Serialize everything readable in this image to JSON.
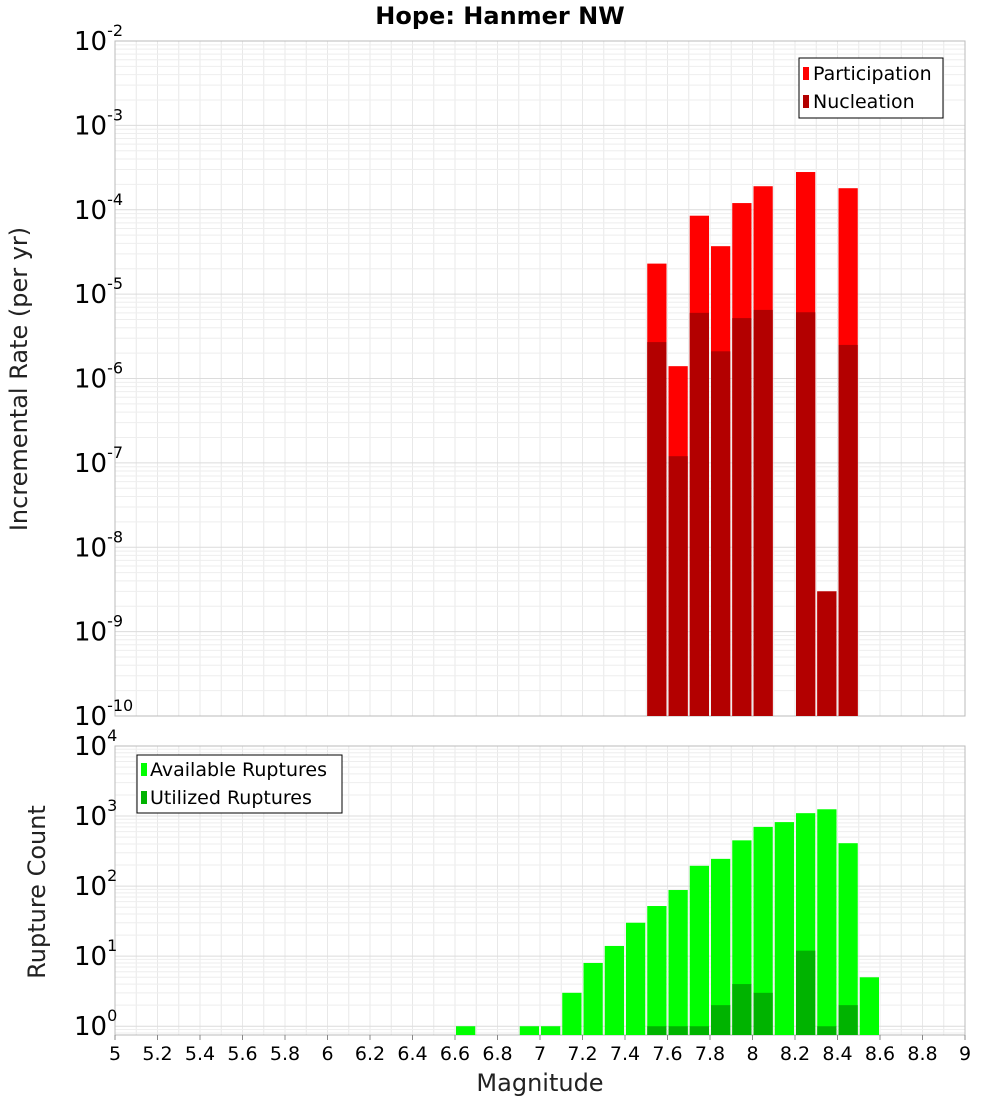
{
  "chart_data": [
    {
      "type": "bar",
      "title": "Hope: Hanmer NW",
      "xlabel": "",
      "ylabel": "Incremental Rate (per yr)",
      "yscale": "log",
      "xlim": [
        5,
        9
      ],
      "ylim": [
        1e-10,
        0.01
      ],
      "ytick_exponents": [
        -10,
        -9,
        -8,
        -7,
        -6,
        -5,
        -4,
        -3,
        -2
      ],
      "grid": true,
      "legend_position": "top-right",
      "bar_width": 0.1,
      "x": [
        7.55,
        7.65,
        7.75,
        7.85,
        7.95,
        8.05,
        8.15,
        8.25,
        8.35,
        8.45
      ],
      "series": [
        {
          "name": "Participation",
          "color": "#ff0000",
          "values": [
            2.3e-05,
            1.4e-06,
            8.5e-05,
            3.7e-05,
            0.00012,
            0.00019,
            null,
            0.00028,
            3e-09,
            0.00018
          ]
        },
        {
          "name": "Nucleation",
          "color": "#b30000",
          "values": [
            2.7e-06,
            1.2e-07,
            6e-06,
            2.1e-06,
            5.2e-06,
            6.5e-06,
            null,
            6.1e-06,
            3e-09,
            2.5e-06
          ]
        }
      ]
    },
    {
      "type": "bar",
      "title": "",
      "xlabel": "Magnitude",
      "ylabel": "Rupture Count",
      "yscale": "log",
      "xlim": [
        5,
        9
      ],
      "ylim": [
        0.75,
        10000
      ],
      "ytick_exponents": [
        0,
        1,
        2,
        3,
        4
      ],
      "xticks": [
        "5",
        "5.2",
        "5.4",
        "5.6",
        "5.8",
        "6",
        "6.2",
        "6.4",
        "6.6",
        "6.8",
        "7",
        "7.2",
        "7.4",
        "7.6",
        "7.8",
        "8",
        "8.2",
        "8.4",
        "8.6",
        "8.8",
        "9"
      ],
      "grid": true,
      "legend_position": "top-left",
      "bar_width": 0.1,
      "x": [
        6.65,
        6.95,
        7.05,
        7.15,
        7.25,
        7.35,
        7.45,
        7.55,
        7.65,
        7.75,
        7.85,
        7.95,
        8.05,
        8.15,
        8.25,
        8.35,
        8.45,
        8.55
      ],
      "series": [
        {
          "name": "Available Ruptures",
          "color": "#00ff00",
          "values": [
            1,
            1,
            1,
            3,
            8,
            14,
            30,
            52,
            88,
            195,
            245,
            450,
            700,
            820,
            1100,
            1250,
            410,
            5
          ]
        },
        {
          "name": "Utilized Ruptures",
          "color": "#00b300",
          "values": [
            null,
            null,
            null,
            null,
            null,
            null,
            null,
            1,
            1,
            1,
            2,
            4,
            3,
            null,
            12,
            1,
            2,
            null
          ]
        }
      ]
    }
  ]
}
